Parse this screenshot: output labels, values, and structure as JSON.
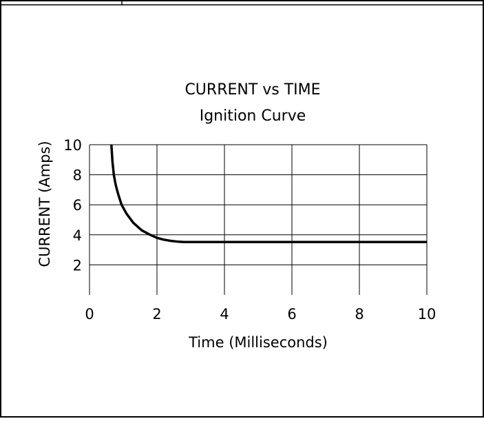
{
  "chart_data": {
    "type": "line",
    "title": "CURRENT vs TIME",
    "subtitle": "Ignition Curve",
    "xlabel": "Time (Milliseconds)",
    "ylabel": "CURRENT (Amps)",
    "xlim": [
      0,
      10
    ],
    "ylim": [
      0,
      10
    ],
    "x_ticks": [
      "0",
      "2",
      "4",
      "6",
      "8",
      "10"
    ],
    "y_ticks": [
      "2",
      "4",
      "6",
      "8",
      "10"
    ],
    "grid": true,
    "series": [
      {
        "x": [
          0.65,
          0.68,
          0.72,
          0.78,
          0.85,
          0.95,
          1.1,
          1.3,
          1.55,
          1.8,
          2.0,
          2.2,
          2.4,
          2.6,
          2.8,
          3.0,
          4.0,
          6.0,
          8.0,
          10.0
        ],
        "y": [
          10.0,
          8.9,
          8.0,
          7.3,
          6.7,
          6.0,
          5.4,
          4.8,
          4.3,
          4.0,
          3.8,
          3.68,
          3.6,
          3.55,
          3.52,
          3.52,
          3.52,
          3.52,
          3.52,
          3.52
        ]
      }
    ]
  }
}
